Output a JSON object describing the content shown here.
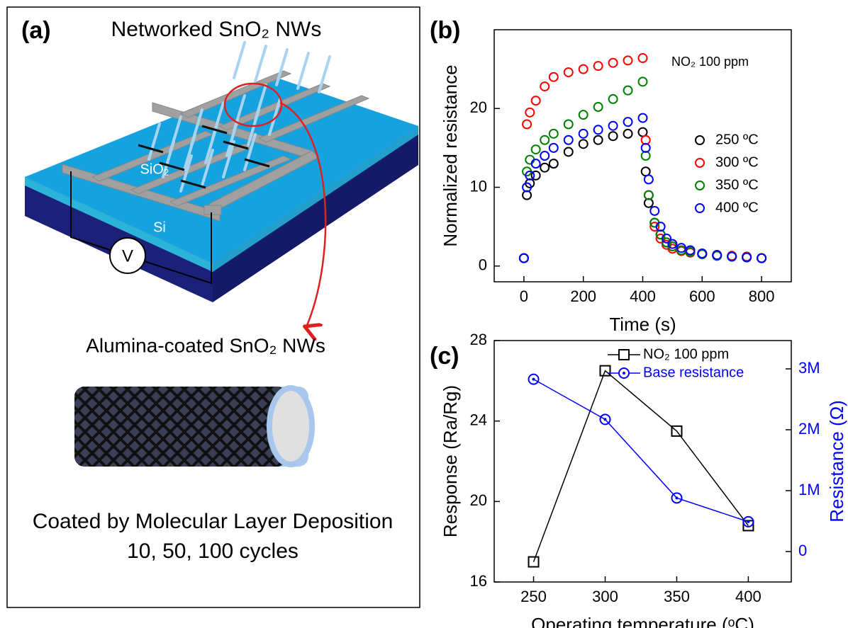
{
  "diagram": {
    "label": "(a)",
    "title": "Networked SnO₂ NWs",
    "layer_top": "SiO₂",
    "layer_bottom": "Si",
    "meter": "V",
    "subtitle": "Alumina-coated SnO₂ NWs",
    "caption": "Coated by Molecular Layer Deposition",
    "caption_detail": "10, 50, 100 cycles"
  },
  "chart_data": [
    {
      "type": "scatter",
      "label": "(b)",
      "x_label": "Time (s)",
      "y_label": "Normalized resistance",
      "annotation": "NO₂ 100 ppm",
      "xlim": [
        -100,
        900
      ],
      "ylim": [
        -2,
        30
      ],
      "xticks": [
        0,
        200,
        400,
        600,
        800
      ],
      "yticks": [
        0,
        10,
        20
      ],
      "legend": "right",
      "x": [
        0,
        10,
        20,
        40,
        70,
        100,
        150,
        200,
        250,
        300,
        350,
        400,
        410,
        420,
        440,
        460,
        480,
        500,
        530,
        560,
        600,
        650,
        700,
        750,
        800
      ],
      "series": [
        {
          "name": "250 ºC",
          "color": "#000000",
          "values": [
            1,
            9,
            10.5,
            11.5,
            12.5,
            13,
            14.5,
            15.5,
            16,
            16.5,
            16.8,
            17,
            12,
            8,
            5.5,
            4,
            3,
            2.5,
            2,
            1.8,
            1.5,
            1.3,
            1.2,
            1.1,
            1
          ]
        },
        {
          "name": "300 ºC",
          "color": "#ff0000",
          "values": [
            1,
            18,
            19.5,
            21,
            22.8,
            24,
            24.6,
            25,
            25.4,
            25.8,
            26.1,
            26.4,
            16,
            9,
            5,
            3.5,
            2.7,
            2.2,
            1.9,
            1.7,
            1.5,
            1.4,
            1.3,
            1.2,
            1
          ]
        },
        {
          "name": "350 ºC",
          "color": "#008000",
          "values": [
            1,
            12,
            13.5,
            14.8,
            16,
            16.8,
            18,
            19.2,
            20.2,
            21.2,
            22.3,
            23.4,
            14,
            9,
            5.5,
            4,
            3,
            2.5,
            2,
            1.8,
            1.5,
            1.3,
            1.2,
            1.1,
            1
          ]
        },
        {
          "name": "400 ºC",
          "color": "#0000ff",
          "values": [
            1,
            10,
            11.5,
            13,
            14,
            15,
            16,
            16.8,
            17.3,
            17.8,
            18.3,
            18.8,
            15,
            11,
            7,
            5,
            3.5,
            2.8,
            2.3,
            2,
            1.6,
            1.4,
            1.2,
            1.1,
            1
          ]
        }
      ]
    },
    {
      "type": "line",
      "label": "(c)",
      "x_label": "Operating temperature (ᵒC)",
      "y_label": "Response (Ra/Rg)",
      "y2_label": "Resistance (Ω)",
      "xlim": [
        222.5,
        430
      ],
      "ylim": [
        16,
        28
      ],
      "y2lim": [
        -500000,
        3465000
      ],
      "xticks": [
        250,
        300,
        350,
        400
      ],
      "yticks": [
        16,
        20,
        24,
        28
      ],
      "y2ticks": [
        0,
        {
          "value": 1000000,
          "label": "1M"
        },
        {
          "value": 2000000,
          "label": "2M"
        },
        {
          "value": 3000000,
          "label": "3M"
        }
      ],
      "legend": "top-right",
      "x": [
        250,
        300,
        350,
        400
      ],
      "series": [
        {
          "name": "NO₂ 100 ppm",
          "color": "#000000",
          "marker": "square",
          "values": [
            17,
            26.5,
            23.5,
            18.8
          ]
        },
        {
          "name": "Base resistance",
          "color": "#0000ff",
          "marker": "circle",
          "axis": "y2",
          "values": [
            2830000,
            2170000,
            880000,
            490000
          ]
        }
      ]
    }
  ]
}
